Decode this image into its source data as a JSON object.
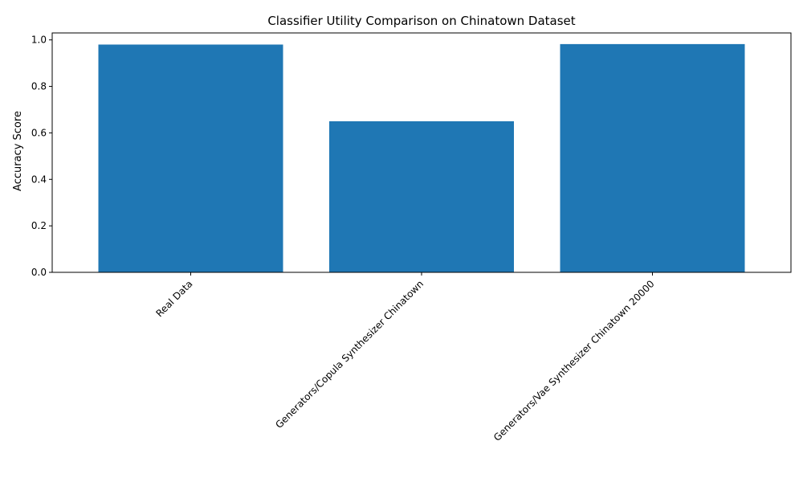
{
  "chart_data": {
    "type": "bar",
    "title": "Classifier Utility Comparison on Chinatown Dataset",
    "xlabel": "",
    "ylabel": "Accuracy Score",
    "categories": [
      "Real Data",
      "Generators/Copula Synthesizer Chinatown",
      "Generators/Vae Synthesizer Chinatown 20000"
    ],
    "values": [
      0.98,
      0.65,
      0.982
    ],
    "ylim": [
      0,
      1.03
    ],
    "yticks": [
      0.0,
      0.2,
      0.4,
      0.6,
      0.8,
      1.0
    ],
    "ytick_labels": [
      "0.0",
      "0.2",
      "0.4",
      "0.6",
      "0.8",
      "1.0"
    ],
    "bar_color": "#1f77b4",
    "grid": false,
    "legend": "none"
  }
}
